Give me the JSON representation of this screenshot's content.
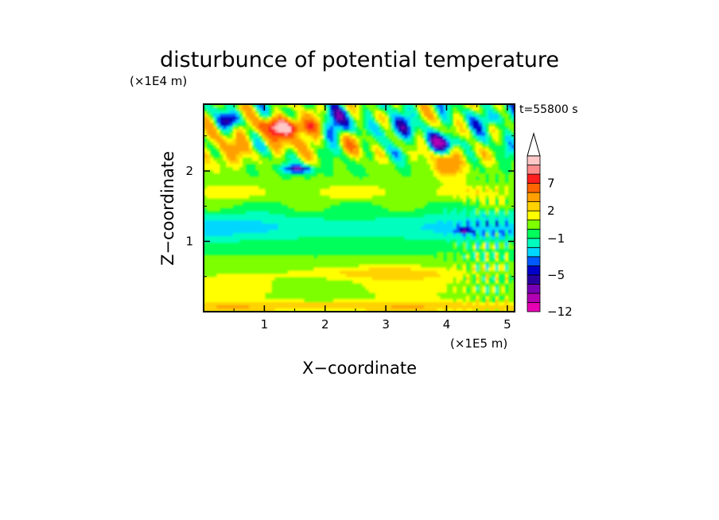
{
  "chart_data": {
    "type": "heatmap",
    "title": "disturbunce of potential temperature",
    "time_label": "t=55800 s",
    "xlabel": "X−coordinate",
    "ylabel": "Z−coordinate",
    "x_scale_label": "(×1E5 m)",
    "y_scale_label": "(×1E4 m)",
    "xlim": [
      0,
      5.12
    ],
    "ylim": [
      0,
      2.95
    ],
    "x_ticks": [
      1,
      2,
      3,
      4,
      5
    ],
    "x_tick_labels": [
      "1",
      "2",
      "3",
      "4",
      "5"
    ],
    "y_ticks": [
      1,
      2
    ],
    "y_tick_labels": [
      "1",
      "2"
    ],
    "colorbar": {
      "levels": [
        -12,
        -10,
        -8,
        -6,
        -5,
        -4,
        -3,
        -2,
        -1,
        0,
        1,
        2,
        3,
        5,
        7,
        8,
        9
      ],
      "colors": [
        "#e600b4",
        "#b400b4",
        "#7800b4",
        "#2800a0",
        "#0000c8",
        "#005aff",
        "#00d7ff",
        "#00ffbe",
        "#00ff5a",
        "#7dff00",
        "#ffff00",
        "#ffd200",
        "#ffa000",
        "#ff6400",
        "#ff1e1e",
        "#ff8c8c",
        "#ffc8c8"
      ],
      "tick_values": [
        7,
        2,
        -1,
        -5,
        -12
      ],
      "tick_labels": [
        "7",
        "2",
        "−1",
        "−5",
        "−12"
      ]
    }
  }
}
